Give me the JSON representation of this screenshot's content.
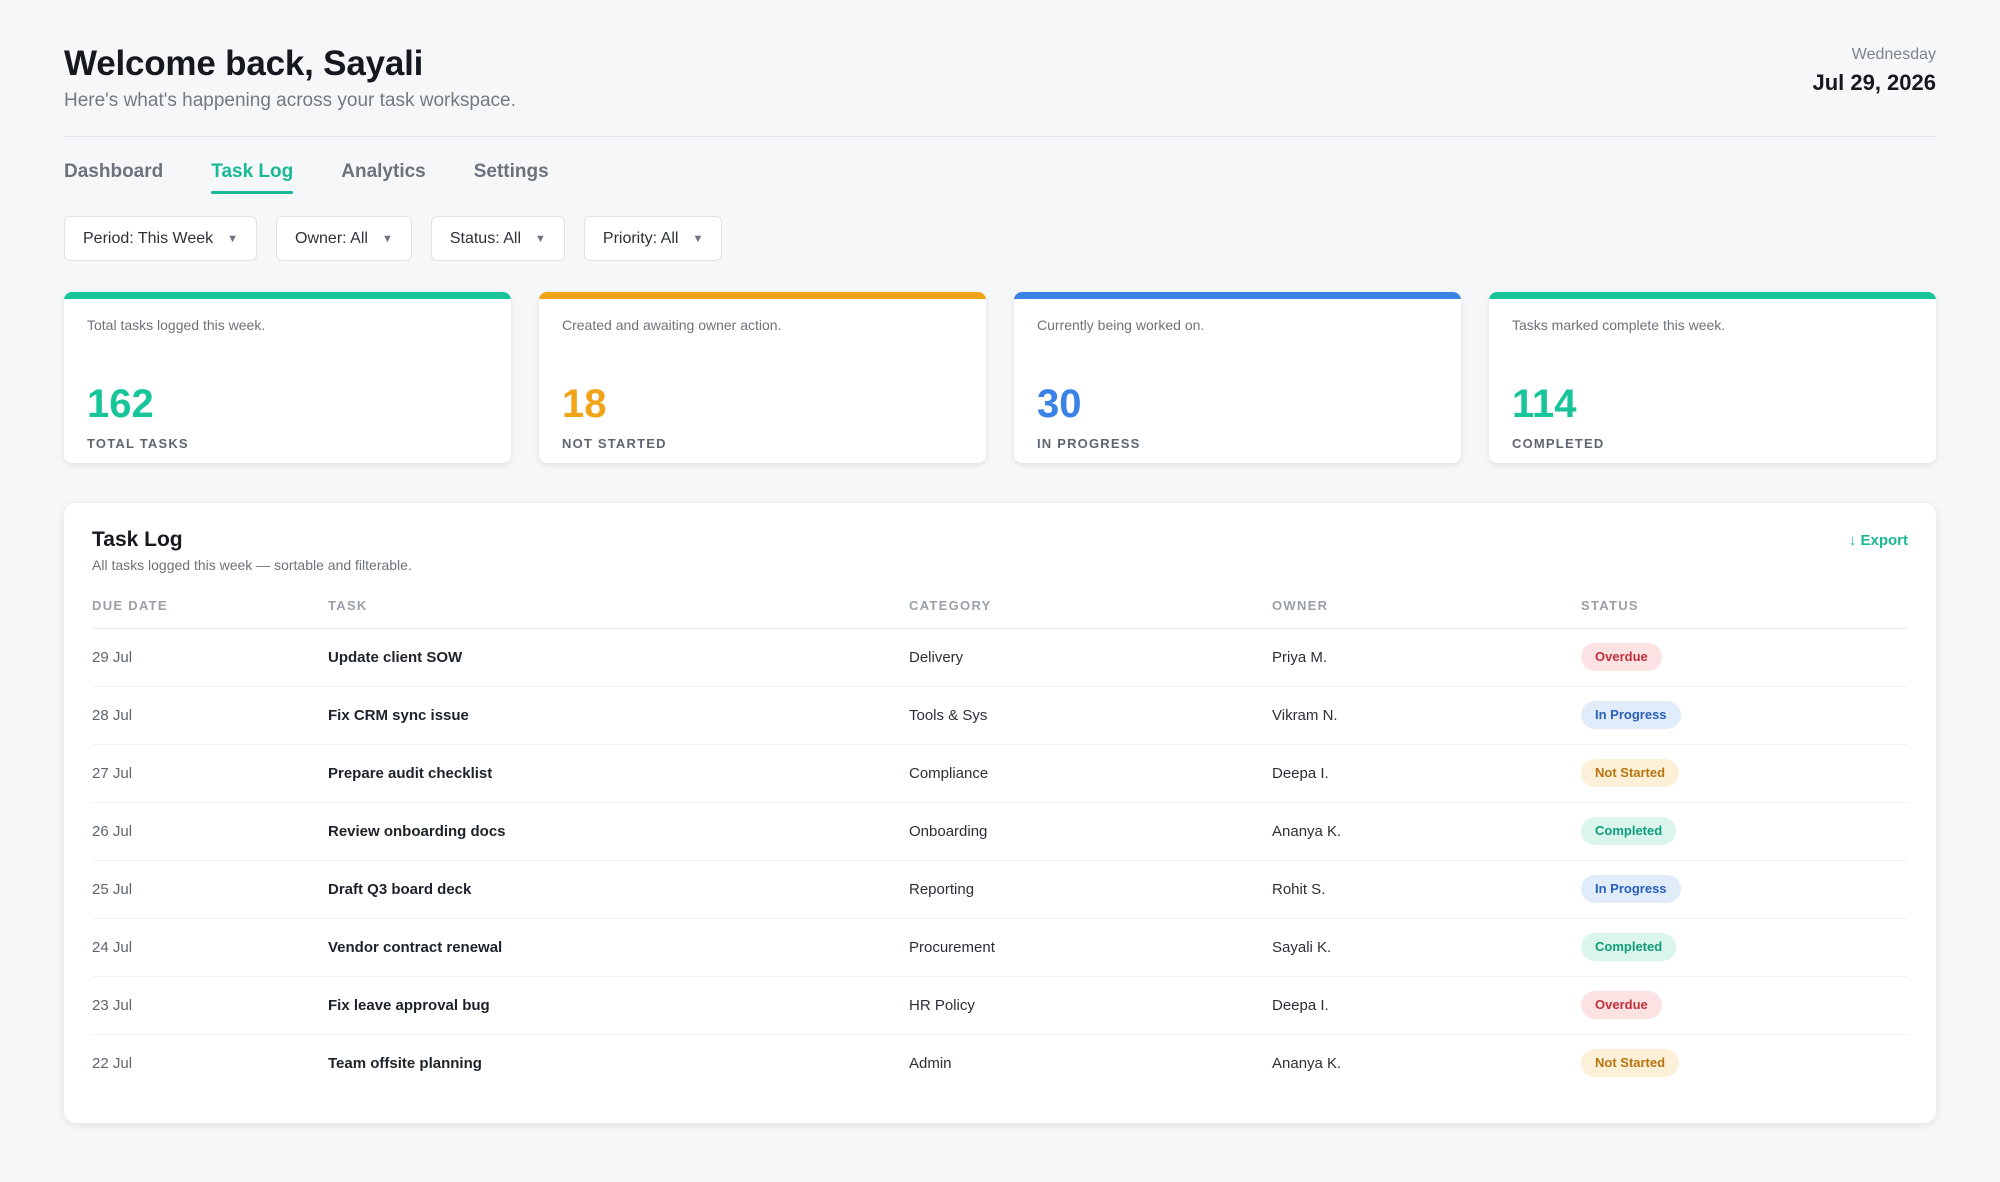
{
  "header": {
    "welcome": "Welcome back, Sayali",
    "subtitle": "Here's what's happening across your task workspace.",
    "date_day": "Wednesday",
    "date_full": "Jul 29, 2026"
  },
  "tabs": [
    {
      "label": "Dashboard",
      "active": false
    },
    {
      "label": "Task Log",
      "active": true
    },
    {
      "label": "Analytics",
      "active": false
    },
    {
      "label": "Settings",
      "active": false
    }
  ],
  "filters": [
    {
      "label": "Period: This Week"
    },
    {
      "label": "Owner: All"
    },
    {
      "label": "Status: All"
    },
    {
      "label": "Priority: All"
    }
  ],
  "kpis": [
    {
      "description": "Total tasks logged this week.",
      "value": "162",
      "label": "TOTAL TASKS",
      "color": "#18c59b"
    },
    {
      "description": "Created and awaiting owner action.",
      "value": "18",
      "label": "NOT STARTED",
      "color": "#f2a418"
    },
    {
      "description": "Currently being worked on.",
      "value": "30",
      "label": "IN PROGRESS",
      "color": "#3b82e6"
    },
    {
      "description": "Tasks marked complete this week.",
      "value": "114",
      "label": "COMPLETED",
      "color": "#18c59b"
    }
  ],
  "task_log": {
    "title": "Task Log",
    "subtitle": "All tasks logged this week — sortable and filterable.",
    "export_label": "↓ Export",
    "columns": [
      "DUE DATE",
      "TASK",
      "CATEGORY",
      "OWNER",
      "STATUS"
    ],
    "rows": [
      {
        "date": "29 Jul",
        "task": "Update client SOW",
        "category": "Delivery",
        "owner": "Priya M.",
        "status": "Overdue"
      },
      {
        "date": "28 Jul",
        "task": "Fix CRM sync issue",
        "category": "Tools & Sys",
        "owner": "Vikram N.",
        "status": "In Progress"
      },
      {
        "date": "27 Jul",
        "task": "Prepare audit checklist",
        "category": "Compliance",
        "owner": "Deepa I.",
        "status": "Not Started"
      },
      {
        "date": "26 Jul",
        "task": "Review onboarding docs",
        "category": "Onboarding",
        "owner": "Ananya K.",
        "status": "Completed"
      },
      {
        "date": "25 Jul",
        "task": "Draft Q3 board deck",
        "category": "Reporting",
        "owner": "Rohit S.",
        "status": "In Progress"
      },
      {
        "date": "24 Jul",
        "task": "Vendor contract renewal",
        "category": "Procurement",
        "owner": "Sayali K.",
        "status": "Completed"
      },
      {
        "date": "23 Jul",
        "task": "Fix leave approval bug",
        "category": "HR Policy",
        "owner": "Deepa I.",
        "status": "Overdue"
      },
      {
        "date": "22 Jul",
        "task": "Team offsite planning",
        "category": "Admin",
        "owner": "Ananya K.",
        "status": "Not Started"
      }
    ]
  }
}
